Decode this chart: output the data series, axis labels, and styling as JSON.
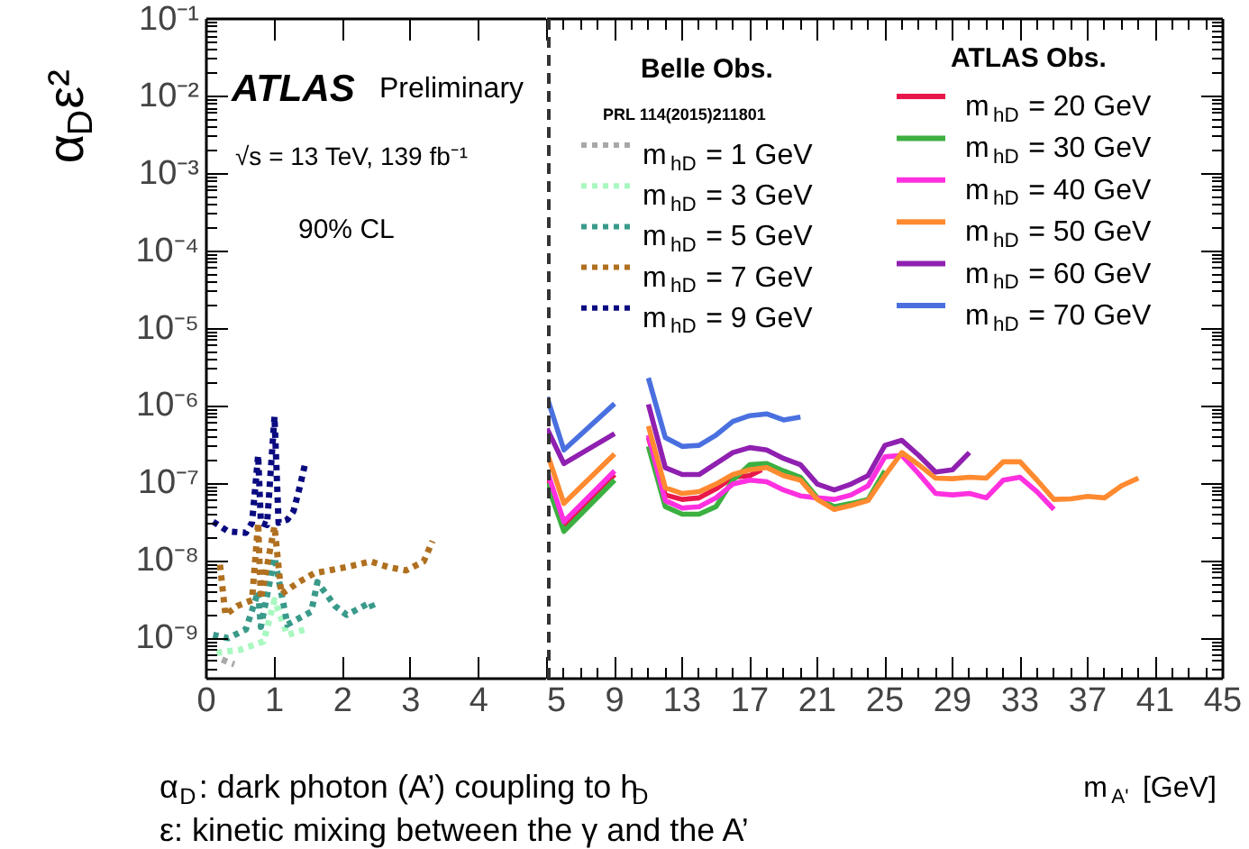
{
  "chart_data": [
    {
      "type": "line",
      "ylabel": "α$_{D}$ε²",
      "log": "y",
      "grid": false,
      "legend": "right",
      "legend_title": "Belle Obs.",
      "xlim": [
        0,
        5
      ],
      "ylim": [
        3e-10,
        0.1
      ],
      "xticks": [
        0,
        1,
        2,
        3,
        4,
        {
          "value": 5,
          "label": null
        }
      ],
      "yticks": [
        {
          "value": 1e-09,
          "label": "10⁻⁹"
        },
        {
          "value": 1e-08,
          "label": "10⁻⁸"
        },
        {
          "value": 1e-07,
          "label": "10⁻⁷"
        },
        {
          "value": 1e-06,
          "label": "10⁻⁶"
        },
        {
          "value": 1e-05,
          "label": "10⁻⁵"
        },
        {
          "value": 0.0001,
          "label": "10⁻⁴"
        },
        {
          "value": 0.001,
          "label": "10⁻³"
        },
        {
          "value": 0.01,
          "label": "10⁻²"
        },
        {
          "value": 0.1,
          "label": "10⁻¹"
        }
      ],
      "annotations": [
        "ATLAS Preliminary",
        "√s = 13 TeV, 139 fb⁻¹",
        "90% CL",
        "PRL 114(2015)211801",
        "α$_{D}$: dark photon (A’) coupling to h$_{D}$",
        "ε:  kinetic mixing between the γ and the A’"
      ],
      "series": [
        {
          "name": "m$_{hD}$ = 1 GeV",
          "color": "#a8a8a8",
          "line_style": "dotted",
          "x": [
            0.23,
            0.32,
            0.41
          ],
          "values": [
            5.3e-10,
            4.9e-10,
            4.6e-10
          ]
        },
        {
          "name": "m$_{hD}$ = 3 GeV",
          "color": "#a8f8c0",
          "line_style": "dotted",
          "x": [
            0.15,
            0.5,
            0.84,
            1.0,
            1.19,
            1.45
          ],
          "values": [
            6.5e-10,
            7.1e-10,
            9.1e-10,
            3.1e-09,
            1.1e-09,
            1.3e-09
          ]
        },
        {
          "name": "m$_{hD}$ = 5 GeV",
          "color": "#3a9a8a",
          "line_style": "dotted",
          "x": [
            0.1,
            0.32,
            0.58,
            0.76,
            0.8,
            1.0,
            1.19,
            1.54,
            1.63,
            1.89,
            2.06,
            2.41,
            2.45
          ],
          "values": [
            1.1e-09,
            1e-09,
            1.3e-09,
            4e-09,
            1.4e-09,
            1.1e-08,
            1.5e-09,
            2.2e-09,
            5.3e-09,
            2.6e-09,
            2e-09,
            2.9e-09,
            2.4e-09
          ]
        },
        {
          "name": "m$_{hD}$ = 7 GeV",
          "color": "#b07020",
          "line_style": "dotted",
          "x": [
            0.2,
            0.28,
            0.45,
            0.67,
            0.76,
            0.8,
            1.0,
            1.1,
            1.37,
            1.58,
            1.8,
            2.06,
            2.41,
            2.67,
            2.93,
            3.19,
            3.32
          ],
          "values": [
            8.9e-09,
            2e-09,
            2.6e-09,
            3.1e-09,
            3.1e-08,
            3.2e-09,
            2.8e-08,
            3.7e-09,
            5.4e-09,
            6.9e-09,
            7.5e-09,
            8.3e-09,
            9.8e-09,
            8.3e-09,
            7.5e-09,
            9.8e-09,
            1.8e-08
          ]
        },
        {
          "name": "m$_{hD}$ = 9 GeV",
          "color": "#0a0a80",
          "line_style": "dotted",
          "x": [
            0.1,
            0.32,
            0.58,
            0.67,
            0.76,
            0.8,
            0.89,
            1.0,
            1.06,
            1.19,
            1.28,
            1.37,
            1.45
          ],
          "values": [
            3.2e-08,
            2.4e-08,
            2.3e-08,
            3.1e-08,
            2.3e-07,
            3.1e-08,
            2.9e-08,
            7.3e-07,
            3.1e-08,
            3.4e-08,
            4.4e-08,
            8.9e-08,
            1.8e-07
          ]
        }
      ]
    },
    {
      "type": "line",
      "xlabel": "m$_{A'}$ [GeV]",
      "log": "y",
      "grid": false,
      "legend": "top right",
      "legend_title": "ATLAS Obs.",
      "tick_labels": "x",
      "xlim": [
        5,
        45
      ],
      "ylim": [
        3e-10,
        0.1
      ],
      "xticks": [
        5,
        9,
        13,
        17,
        21,
        25,
        29,
        33,
        37,
        41,
        45
      ],
      "yticks": [
        1e-09,
        1e-08,
        1e-07,
        1e-06,
        1e-05,
        0.0001,
        0.001,
        0.01,
        0.1
      ],
      "ref_lines": [
        {
          "axis": "x",
          "value": 5,
          "color": "#333333",
          "line_style": "dashed"
        }
      ],
      "series": [
        {
          "name": "m$_{hD}$ = 20 GeV",
          "color": "#e8174a",
          "line_style": "solid",
          "x": [
            5,
            6,
            9,
            10,
            11,
            12,
            13,
            14,
            15,
            16,
            17,
            17.7
          ],
          "values": [
            1.2e-07,
            2.9e-08,
            1.3e-07,
            null,
            3.9e-07,
            7.1e-08,
            6.2e-08,
            6.5e-08,
            8.5e-08,
            1.2e-07,
            1.26e-07,
            1.5e-07
          ]
        },
        {
          "name": "m$_{hD}$ = 30 GeV",
          "color": "#3cb040",
          "line_style": "solid",
          "x": [
            5,
            6,
            9,
            10,
            11,
            12,
            13,
            14,
            15,
            16,
            17,
            18,
            19,
            20,
            21,
            22,
            23,
            24,
            25
          ],
          "values": [
            1e-07,
            2.4e-08,
            1.1e-07,
            null,
            3e-07,
            5e-08,
            4e-08,
            4e-08,
            5e-08,
            1.1e-07,
            1.74e-07,
            1.8e-07,
            1.45e-07,
            1.2e-07,
            6.5e-08,
            5e-08,
            5.5e-08,
            6.2e-08,
            1.45e-07
          ]
        },
        {
          "name": "m$_{hD}$ = 40 GeV",
          "color": "#ff30e0",
          "line_style": "solid",
          "x": [
            5,
            6,
            9,
            10,
            11,
            12,
            13,
            14,
            15,
            16,
            17,
            18,
            19,
            20,
            21,
            22,
            23,
            24,
            25,
            26,
            27,
            28,
            29,
            30,
            31,
            32,
            33,
            34,
            35
          ],
          "values": [
            1.45e-07,
            3.2e-08,
            1.45e-07,
            null,
            4.2e-07,
            6e-08,
            4.8e-08,
            5e-08,
            6.5e-08,
            9.8e-08,
            1.1e-07,
            1.05e-07,
            8.2e-08,
            6.9e-08,
            6.5e-08,
            6.2e-08,
            7.1e-08,
            9.3e-08,
            2.2e-07,
            2.3e-07,
            1.33e-07,
            7.4e-08,
            7.1e-08,
            7.4e-08,
            6.5e-08,
            1.1e-07,
            1.2e-07,
            7.8e-08,
            4.6e-08
          ]
        },
        {
          "name": "m$_{hD}$ = 50 GeV",
          "color": "#ff8a30",
          "line_style": "solid",
          "x": [
            5,
            6,
            9,
            10,
            11,
            12,
            13,
            14,
            15,
            16,
            17,
            18,
            19,
            20,
            21,
            22,
            23,
            24,
            25,
            26,
            27,
            28,
            29,
            30,
            31,
            32,
            33,
            34,
            35,
            36,
            37,
            38,
            39,
            40
          ],
          "values": [
            2.5e-07,
            5.5e-08,
            2.4e-07,
            null,
            5.5e-07,
            8.8e-08,
            7.4e-08,
            7.8e-08,
            9.8e-08,
            1.3e-07,
            1.5e-07,
            1.6e-07,
            1.26e-07,
            1.1e-07,
            6.2e-08,
            4.6e-08,
            5.2e-08,
            6e-08,
            1.26e-07,
            2.5e-07,
            1.74e-07,
            1.17e-07,
            1.15e-07,
            1.2e-07,
            1.17e-07,
            1.9e-07,
            1.9e-07,
            1.1e-07,
            6.2e-08,
            6.3e-08,
            6.8e-08,
            6.5e-08,
            9.3e-08,
            1.17e-07
          ]
        },
        {
          "name": "m$_{hD}$ = 60 GeV",
          "color": "#9020b0",
          "line_style": "solid",
          "x": [
            5,
            6,
            9,
            10,
            11,
            12,
            13,
            14,
            15,
            16,
            17,
            18,
            19,
            20,
            21,
            22,
            23,
            24,
            25,
            26,
            27,
            28,
            29,
            30
          ],
          "values": [
            5.1e-07,
            1.8e-07,
            4.4e-07,
            null,
            1.05e-06,
            1.6e-07,
            1.3e-07,
            1.3e-07,
            1.8e-07,
            2.5e-07,
            2.9e-07,
            2.7e-07,
            2.1e-07,
            1.74e-07,
            9.8e-08,
            8.2e-08,
            9.8e-08,
            1.26e-07,
            3.1e-07,
            3.6e-07,
            2.3e-07,
            1.4e-07,
            1.5e-07,
            2.5e-07
          ]
        },
        {
          "name": "m$_{hD}$ = 70 GeV",
          "color": "#4a70e0",
          "line_style": "solid",
          "x": [
            5,
            6,
            9,
            10,
            11,
            12,
            13,
            14,
            15,
            16,
            17,
            18,
            19,
            20
          ],
          "values": [
            1.3e-06,
            2.7e-07,
            1.07e-06,
            null,
            2.3e-06,
            3.9e-07,
            3e-07,
            3.1e-07,
            4.2e-07,
            6.3e-07,
            7.5e-07,
            7.9e-07,
            6.6e-07,
            7.2e-07
          ]
        }
      ]
    }
  ]
}
